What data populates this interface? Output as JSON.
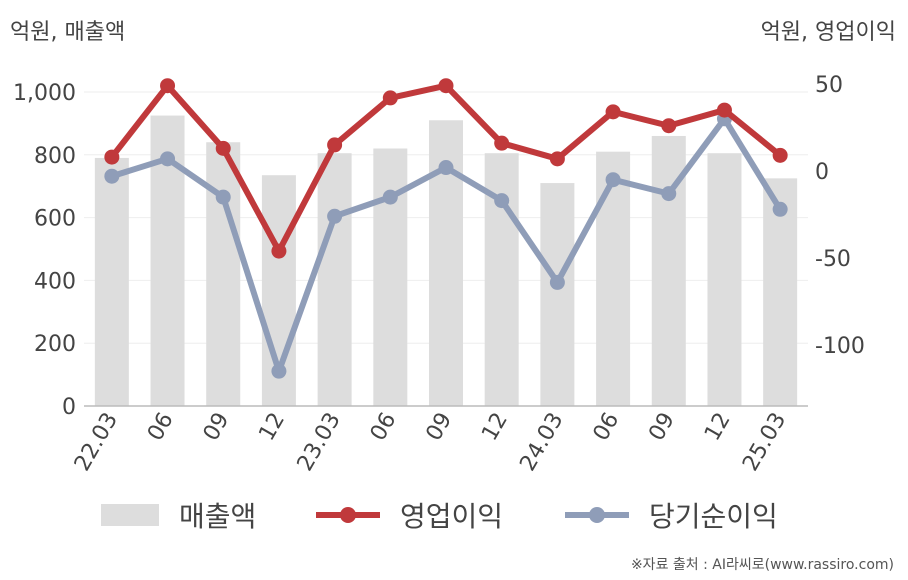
{
  "left_unit": "억원, 매출액",
  "right_unit": "억원, 영업이익",
  "source": "※자료 출처 : AI라씨로(www.rassiro.com)",
  "colors": {
    "bar": "#dddddd",
    "operating_profit": "#c0393b",
    "net_income": "#8f9db8",
    "axis_text": "#444444",
    "grid": "#eeeeee"
  },
  "legend": [
    {
      "label": "매출액",
      "kind": "bar",
      "color": "#dddddd"
    },
    {
      "label": "영업이익",
      "kind": "line",
      "color": "#c0393b"
    },
    {
      "label": "당기순이익",
      "kind": "line",
      "color": "#8f9db8"
    }
  ],
  "chart_data": {
    "type": "bar",
    "categories": [
      "22.03",
      "06",
      "09",
      "12",
      "23.03",
      "06",
      "09",
      "12",
      "24.03",
      "06",
      "09",
      "12",
      "25.03"
    ],
    "y_left": {
      "label": "억원, 매출액",
      "lim": [
        0,
        1000
      ],
      "ticks": [
        0,
        200,
        400,
        600,
        800,
        1000
      ],
      "tick_labels": [
        "0",
        "200",
        "400",
        "600",
        "800",
        "1,000"
      ]
    },
    "y_right": {
      "label": "억원, 영업이익",
      "lim": [
        -135,
        50
      ],
      "ticks": [
        50,
        0,
        -50,
        -100
      ],
      "tick_labels": [
        "50",
        "0",
        "-50",
        "-100"
      ]
    },
    "series": [
      {
        "name": "매출액",
        "type": "bar",
        "axis": "left",
        "values": [
          790,
          925,
          840,
          735,
          805,
          820,
          910,
          805,
          710,
          810,
          860,
          805,
          725
        ]
      },
      {
        "name": "영업이익",
        "type": "line",
        "axis": "right",
        "values": [
          8,
          49,
          13,
          -46,
          15,
          42,
          49,
          16,
          7,
          34,
          26,
          35,
          9
        ]
      },
      {
        "name": "당기순이익",
        "type": "line",
        "axis": "right",
        "values": [
          -3,
          7,
          -15,
          -115,
          -26,
          -15,
          2,
          -17,
          -64,
          -5,
          -13,
          30,
          -22
        ]
      }
    ],
    "grid": true,
    "legend_position": "bottom"
  }
}
